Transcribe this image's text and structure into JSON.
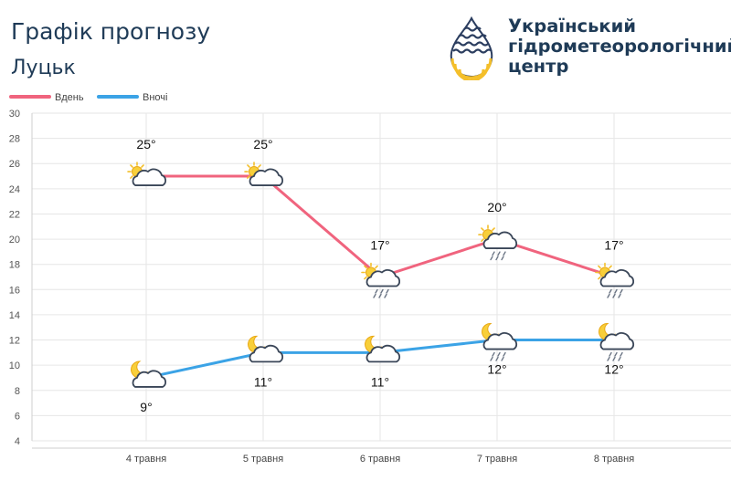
{
  "header": {
    "title": "Графік прогнозу",
    "city": "Луцьк"
  },
  "org": {
    "line1": "Український",
    "line2": "гідрометеорологічний",
    "line3": "центр"
  },
  "colors": {
    "day": "#f0647e",
    "night": "#3ba3e6",
    "text": "#1f3b57",
    "grid": "#e6e6e6",
    "logo_navy": "#2b3d5f",
    "logo_yellow": "#f4bf2a"
  },
  "chart_data": {
    "type": "line",
    "categories": [
      "4 травня",
      "5 травня",
      "6 травня",
      "7 травня",
      "8 травня"
    ],
    "ylim": [
      4,
      30
    ],
    "yticks": [
      4,
      6,
      8,
      10,
      12,
      14,
      16,
      18,
      20,
      22,
      24,
      26,
      28,
      30
    ],
    "grid": true,
    "legend": "top-left",
    "series": [
      {
        "name": "Вдень",
        "color": "#f0647e",
        "values": [
          25,
          25,
          17,
          20,
          17
        ],
        "labels": [
          "25°",
          "25°",
          "17°",
          "20°",
          "17°"
        ],
        "icons": [
          "sun-cloud-icon",
          "sun-cloud-icon",
          "sun-cloud-rain-icon",
          "sun-cloud-rain-icon",
          "sun-cloud-rain-icon"
        ]
      },
      {
        "name": "Вночі",
        "color": "#3ba3e6",
        "values": [
          9,
          11,
          11,
          12,
          12
        ],
        "labels": [
          "9°",
          "11°",
          "11°",
          "12°",
          "12°"
        ],
        "icons": [
          "moon-cloud-icon",
          "moon-cloud-icon",
          "moon-cloud-icon",
          "moon-cloud-rain-icon",
          "moon-cloud-rain-icon"
        ]
      }
    ]
  }
}
